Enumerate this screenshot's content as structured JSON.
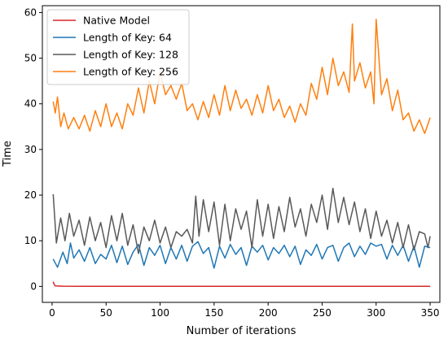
{
  "chart_data": {
    "type": "line",
    "title": "",
    "xlabel": "Number of iterations",
    "ylabel": "Time",
    "xlim": [
      -9,
      359
    ],
    "ylim": [
      -3.5,
      61.5
    ],
    "xticks": [
      0,
      50,
      100,
      150,
      200,
      250,
      300,
      350
    ],
    "yticks": [
      0,
      10,
      20,
      30,
      40,
      50,
      60
    ],
    "grid": false,
    "legend_position": "upper-left",
    "series": [
      {
        "name": "Native Model",
        "color": "#d62728",
        "x": [
          1,
          2,
          3,
          10,
          30,
          60,
          100,
          150,
          200,
          250,
          300,
          350
        ],
        "values": [
          1.0,
          0.4,
          0.1,
          0.05,
          0.03,
          0.02,
          0.02,
          0.02,
          0.02,
          0.02,
          0.02,
          0.02
        ]
      },
      {
        "name": "Length of Key: 64",
        "color": "#1f77b4",
        "x": [
          1,
          5,
          10,
          14,
          17,
          20,
          25,
          30,
          35,
          40,
          45,
          50,
          55,
          60,
          65,
          70,
          75,
          80,
          85,
          90,
          95,
          100,
          105,
          110,
          115,
          120,
          125,
          130,
          135,
          140,
          145,
          150,
          155,
          160,
          165,
          170,
          175,
          180,
          185,
          190,
          195,
          200,
          205,
          210,
          215,
          220,
          225,
          230,
          235,
          240,
          245,
          250,
          255,
          260,
          265,
          270,
          275,
          280,
          285,
          290,
          295,
          300,
          305,
          310,
          315,
          320,
          325,
          330,
          335,
          340,
          345,
          350
        ],
        "values": [
          6.0,
          4.2,
          7.5,
          5.0,
          9.5,
          6.2,
          8.0,
          5.5,
          8.5,
          5.0,
          7.0,
          6.0,
          9.0,
          5.2,
          8.8,
          4.8,
          7.5,
          9.2,
          4.6,
          8.5,
          6.8,
          9.0,
          5.0,
          8.5,
          6.0,
          9.0,
          5.5,
          8.8,
          9.8,
          7.2,
          8.5,
          4.0,
          8.8,
          6.2,
          9.2,
          7.0,
          8.5,
          4.6,
          8.8,
          7.5,
          9.0,
          5.8,
          8.5,
          7.2,
          9.0,
          6.5,
          8.8,
          4.8,
          8.0,
          6.8,
          9.2,
          6.0,
          8.5,
          9.0,
          5.5,
          8.5,
          9.5,
          6.5,
          8.8,
          7.0,
          9.5,
          8.8,
          9.2,
          6.0,
          9.0,
          6.8,
          9.0,
          5.5,
          8.8,
          4.2,
          8.8,
          8.5
        ]
      },
      {
        "name": "Length of Key: 128",
        "color": "#595959",
        "x": [
          1,
          4,
          8,
          12,
          16,
          20,
          25,
          30,
          35,
          40,
          45,
          50,
          55,
          60,
          65,
          70,
          75,
          80,
          85,
          90,
          95,
          100,
          105,
          110,
          115,
          120,
          125,
          130,
          133,
          136,
          140,
          145,
          150,
          155,
          160,
          165,
          170,
          175,
          180,
          185,
          190,
          195,
          200,
          205,
          210,
          215,
          220,
          225,
          230,
          235,
          240,
          245,
          250,
          255,
          260,
          265,
          270,
          275,
          280,
          285,
          290,
          295,
          300,
          305,
          310,
          315,
          320,
          325,
          330,
          335,
          340,
          345,
          348,
          350
        ],
        "values": [
          20.2,
          9.5,
          15.0,
          10.0,
          16.0,
          11.0,
          14.5,
          9.0,
          15.2,
          10.0,
          14.0,
          8.5,
          15.5,
          10.0,
          16.0,
          9.0,
          13.5,
          7.2,
          13.0,
          10.0,
          14.5,
          9.5,
          13.0,
          8.5,
          12.0,
          11.0,
          12.5,
          9.5,
          19.8,
          11.0,
          19.0,
          12.0,
          18.5,
          9.0,
          18.0,
          10.0,
          17.0,
          12.5,
          16.5,
          8.5,
          19.0,
          11.0,
          18.0,
          10.5,
          17.5,
          12.0,
          19.5,
          13.0,
          17.0,
          11.0,
          18.0,
          14.0,
          20.0,
          12.5,
          21.5,
          14.0,
          19.5,
          13.5,
          18.5,
          12.0,
          17.0,
          10.5,
          16.5,
          11.0,
          14.5,
          9.5,
          14.0,
          8.5,
          13.5,
          8.0,
          12.0,
          11.5,
          8.5,
          11.0
        ]
      },
      {
        "name": "Length of Key: 256",
        "color": "#ff7f0e",
        "x": [
          1,
          3,
          5,
          8,
          11,
          15,
          20,
          25,
          30,
          35,
          40,
          45,
          50,
          55,
          60,
          65,
          70,
          75,
          80,
          85,
          90,
          95,
          100,
          105,
          110,
          115,
          120,
          125,
          130,
          135,
          140,
          145,
          150,
          155,
          160,
          165,
          170,
          175,
          180,
          185,
          190,
          195,
          200,
          205,
          210,
          215,
          220,
          225,
          230,
          235,
          240,
          245,
          250,
          255,
          260,
          265,
          270,
          275,
          278,
          280,
          285,
          290,
          295,
          298,
          300,
          305,
          310,
          315,
          320,
          325,
          330,
          335,
          340,
          345,
          350
        ],
        "values": [
          40.5,
          38.0,
          41.5,
          35.0,
          38.0,
          34.5,
          37.0,
          34.5,
          37.5,
          34.0,
          38.5,
          35.0,
          40.0,
          35.0,
          38.0,
          34.5,
          40.0,
          37.5,
          43.5,
          38.0,
          45.0,
          40.0,
          47.0,
          42.0,
          44.0,
          41.0,
          44.5,
          38.5,
          40.0,
          36.5,
          40.5,
          37.0,
          42.0,
          37.5,
          44.0,
          38.5,
          43.0,
          39.0,
          41.0,
          37.5,
          42.0,
          38.0,
          44.0,
          38.5,
          41.0,
          37.0,
          39.5,
          36.0,
          40.0,
          37.5,
          44.5,
          41.0,
          48.0,
          42.0,
          50.0,
          44.0,
          47.0,
          42.5,
          57.5,
          45.0,
          49.0,
          43.5,
          47.0,
          40.0,
          58.5,
          42.0,
          45.5,
          38.5,
          43.0,
          36.5,
          38.0,
          34.0,
          36.5,
          33.5,
          37.0
        ]
      }
    ]
  }
}
